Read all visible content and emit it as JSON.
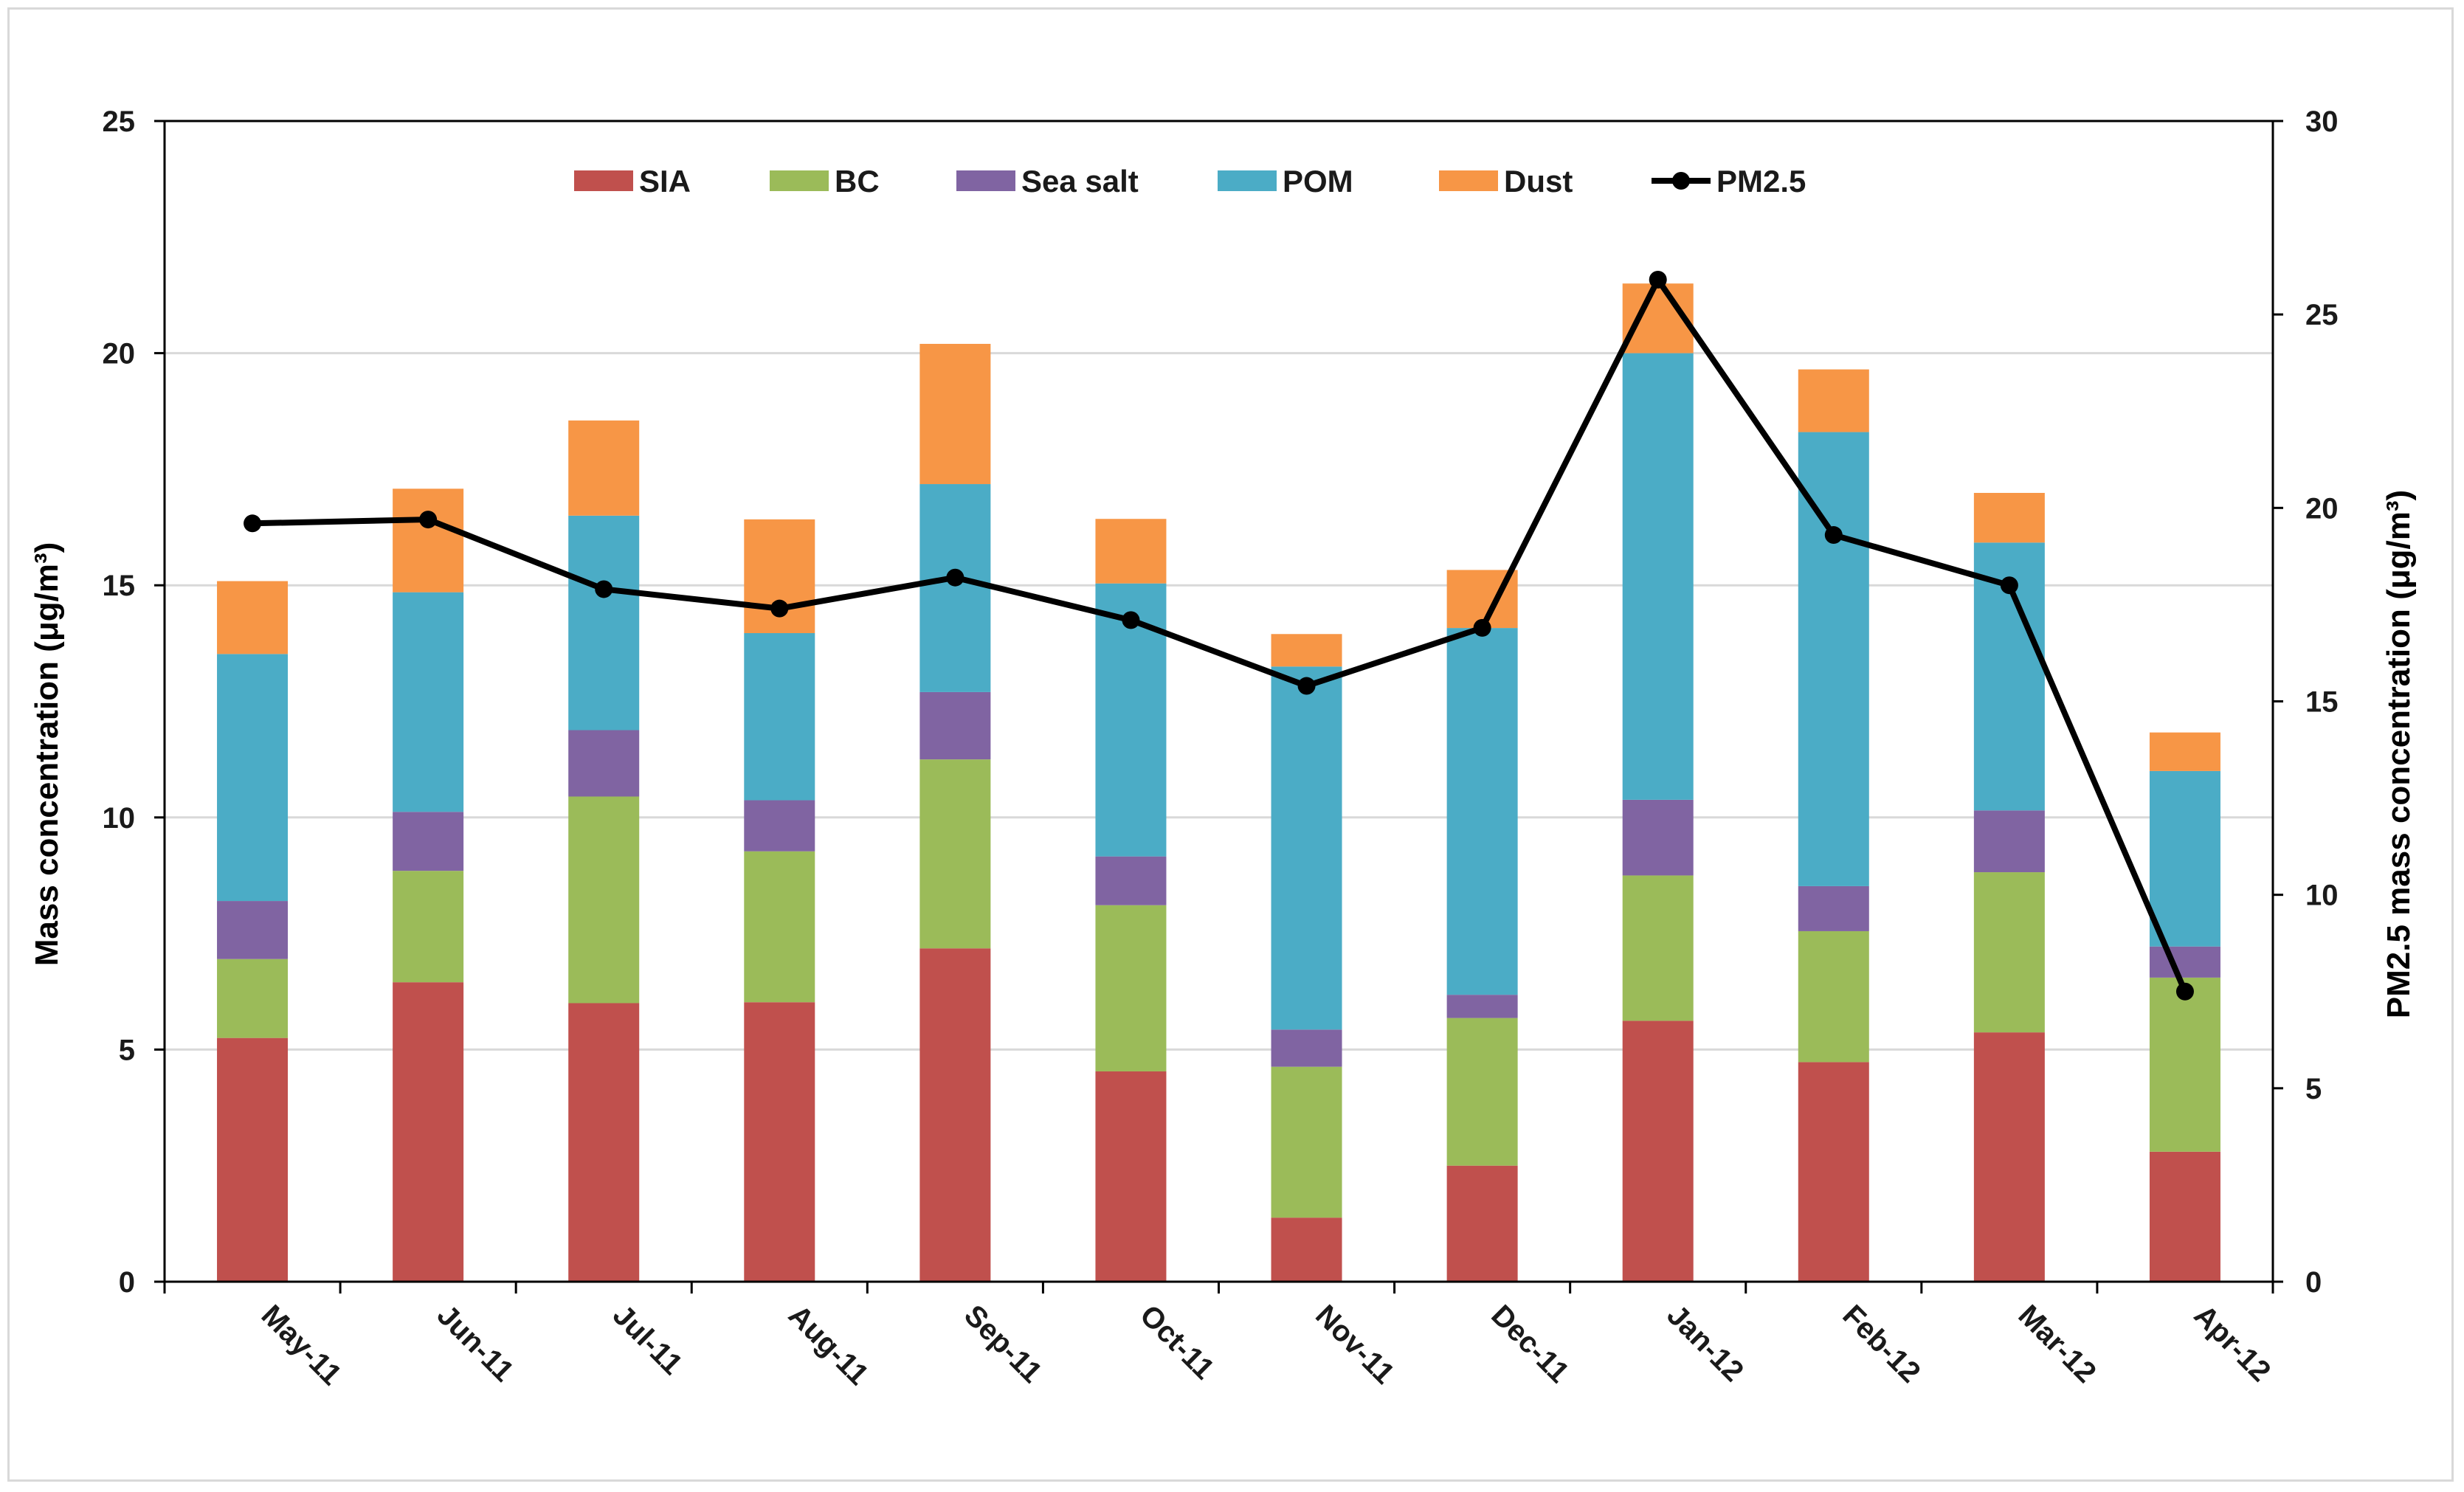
{
  "chart_data": {
    "type": "bar",
    "stacked": true,
    "categories": [
      "May-11",
      "Jun-11",
      "Jul-11",
      "Aug-11",
      "Sep-11",
      "Oct-11",
      "Nov-11",
      "Dec-11",
      "Jan-12",
      "Feb-12",
      "Mar-12",
      "Apr-12"
    ],
    "series": [
      {
        "name": "SIA",
        "color": "#c0504d",
        "values": [
          5.25,
          6.45,
          6.0,
          6.02,
          7.18,
          4.53,
          1.38,
          2.5,
          5.62,
          4.73,
          5.37,
          2.8
        ]
      },
      {
        "name": "BC",
        "color": "#9bbb59",
        "values": [
          1.7,
          2.4,
          4.45,
          3.25,
          4.07,
          3.58,
          3.25,
          3.18,
          3.13,
          2.82,
          3.45,
          3.75
        ]
      },
      {
        "name": "Sea salt",
        "color": "#8064a2",
        "values": [
          1.25,
          1.27,
          1.43,
          1.1,
          1.45,
          1.05,
          0.8,
          0.5,
          1.63,
          0.97,
          1.33,
          0.67
        ]
      },
      {
        "name": "POM",
        "color": "#4bacc6",
        "values": [
          5.32,
          4.73,
          4.62,
          3.6,
          4.48,
          5.88,
          7.82,
          7.9,
          9.62,
          9.78,
          5.77,
          3.78
        ]
      },
      {
        "name": "Dust",
        "color": "#f79646",
        "values": [
          1.57,
          2.23,
          2.05,
          2.45,
          3.02,
          1.39,
          0.7,
          1.25,
          1.5,
          1.35,
          1.07,
          0.83
        ]
      }
    ],
    "line_series": {
      "name": "PM2.5",
      "axis": "right",
      "color": "#000000",
      "values": [
        19.6,
        19.7,
        17.9,
        17.4,
        18.2,
        17.1,
        15.4,
        16.9,
        25.9,
        19.3,
        18.0,
        7.5
      ]
    },
    "ylabel": "Mass concentration (μg/m³)",
    "ylabel_right": "PM2.5 mass concentration (μg/m³)",
    "xlabel": "",
    "ylim": [
      0,
      25
    ],
    "ylim_right": [
      0,
      30
    ],
    "yticks": [
      "0",
      "5",
      "10",
      "15",
      "20",
      "25"
    ],
    "yticks_right": [
      "0",
      "5",
      "10",
      "15",
      "20",
      "25",
      "30"
    ],
    "grid": true,
    "legend_position": "top-center"
  }
}
